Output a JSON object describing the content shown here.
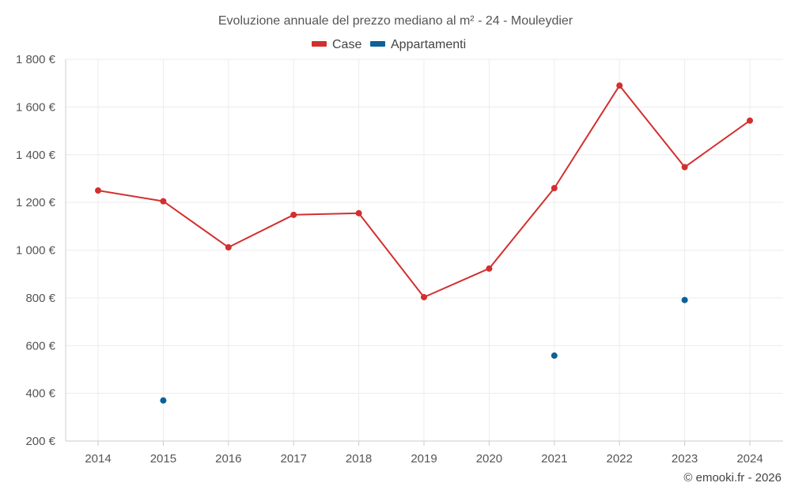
{
  "chart_data": {
    "type": "line",
    "title": "Evoluzione annuale del prezzo mediano al m² - 24 - Mouleydier",
    "x": [
      "2014",
      "2015",
      "2016",
      "2017",
      "2018",
      "2019",
      "2020",
      "2021",
      "2022",
      "2023",
      "2024"
    ],
    "ylim": [
      200,
      1800
    ],
    "y_ticks": [
      200,
      400,
      600,
      800,
      1000,
      1200,
      1400,
      1600,
      1800
    ],
    "y_tick_labels": [
      "200 €",
      "400 €",
      "600 €",
      "800 €",
      "1 000 €",
      "1 200 €",
      "1 400 €",
      "1 600 €",
      "1 800 €"
    ],
    "grid": true,
    "legend_position": "top-center",
    "series": [
      {
        "name": "Case",
        "color": "#d32f2f",
        "style": "line-markers",
        "values": [
          1250,
          1205,
          1012,
          1148,
          1155,
          803,
          923,
          1260,
          1690,
          1348,
          1543
        ]
      },
      {
        "name": "Appartamenti",
        "color": "#0d6199",
        "style": "markers",
        "values": [
          null,
          370,
          null,
          null,
          null,
          null,
          null,
          558,
          null,
          791,
          null
        ]
      }
    ],
    "credit": "© emooki.fr - 2026"
  }
}
